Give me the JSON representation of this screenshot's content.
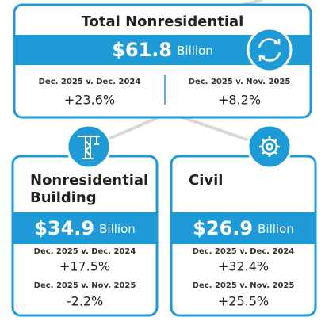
{
  "total": {
    "title": "Total Nonresidential",
    "amount": "$61.8",
    "unit": "Billion",
    "comparisons": [
      {
        "label": "Dec. 2025 v. Dec. 2024",
        "change": "+23.6%"
      },
      {
        "label": "Dec. 2025 v. Nov. 2025",
        "change": "+8.2%"
      }
    ]
  },
  "segments": [
    {
      "title_lines": [
        "Nonresidential",
        "Building"
      ],
      "amount": "$34.9",
      "unit": "Billion",
      "comparisons": [
        {
          "label": "Dec. 2025 v. Dec. 2024",
          "change": "+17.5%"
        },
        {
          "label": "Dec. 2025 v. Nov. 2025",
          "change": "-2.2%"
        }
      ]
    },
    {
      "title_lines": [
        "Civil"
      ],
      "amount": "$26.9",
      "unit": "Billion",
      "comparisons": [
        {
          "label": "Dec. 2025 v. Dec. 2024",
          "change": "+32.4%"
        },
        {
          "label": "Dec. 2025 v. Nov. 2025",
          "change": "+25.5%"
        }
      ]
    }
  ]
}
